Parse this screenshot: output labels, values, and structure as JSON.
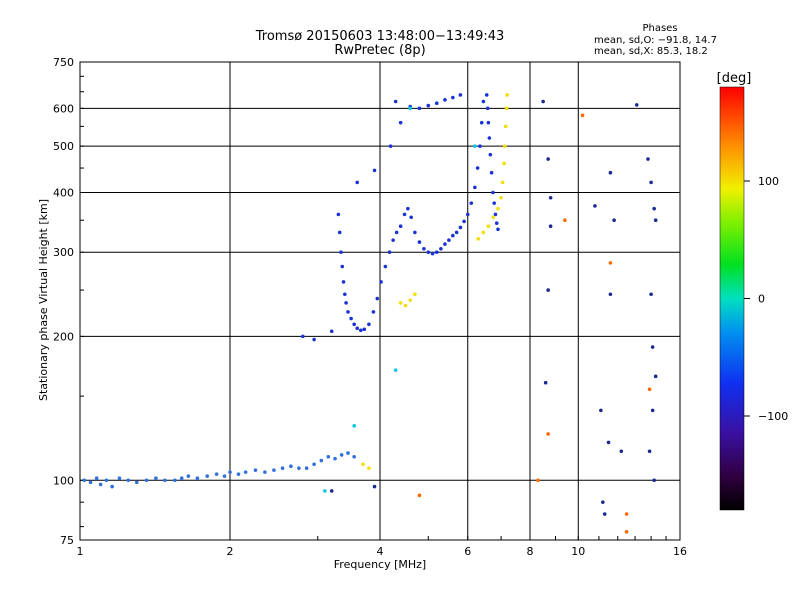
{
  "header": {
    "title": "Tromsø 20150603 13:48:00−13:49:43",
    "subtitle": "RwPretec (8p)"
  },
  "phase_box": {
    "heading": "Phases",
    "line1": "mean, sd,O: −91.8, 14.7",
    "line2": "mean, sd,X:  85.3, 18.2"
  },
  "colorbar": {
    "label": "[deg]",
    "ticks": [
      {
        "value": 100,
        "label": "100"
      },
      {
        "value": 0,
        "label": "0"
      },
      {
        "value": -100,
        "label": "−100"
      }
    ],
    "range": [
      -180,
      180
    ]
  },
  "chart_data": {
    "type": "scatter",
    "title": "Tromsø 20150603 13:48:00−13:49:43",
    "subtitle": "RwPretec (8p)",
    "xlabel": "Frequency [MHz]",
    "ylabel": "Stationary phase Virtual Height [km]",
    "x_scale": "log",
    "y_scale": "log",
    "xlim": [
      1,
      16
    ],
    "ylim": [
      75,
      750
    ],
    "x_ticks": [
      {
        "value": 1,
        "label": "1"
      },
      {
        "value": 2,
        "label": "2"
      },
      {
        "value": 4,
        "label": "4"
      },
      {
        "value": 6,
        "label": "6"
      },
      {
        "value": 8,
        "label": "8"
      },
      {
        "value": 10,
        "label": "10"
      },
      {
        "value": 16,
        "label": "16"
      }
    ],
    "y_ticks": [
      {
        "value": 75,
        "label": "75"
      },
      {
        "value": 100,
        "label": "100"
      },
      {
        "value": 200,
        "label": "200"
      },
      {
        "value": 300,
        "label": "300"
      },
      {
        "value": 400,
        "label": "400"
      },
      {
        "value": 500,
        "label": "500"
      },
      {
        "value": 600,
        "label": "600"
      },
      {
        "value": 750,
        "label": "750"
      }
    ],
    "grid": true,
    "colormap": "rainbow phase [deg]",
    "series": [
      {
        "color": "#2f6fe0",
        "points": [
          [
            1.02,
            100
          ],
          [
            1.05,
            99
          ],
          [
            1.08,
            101
          ],
          [
            1.1,
            98
          ],
          [
            1.13,
            100
          ],
          [
            1.16,
            97
          ],
          [
            1.2,
            101
          ],
          [
            1.25,
            100
          ],
          [
            1.3,
            99
          ],
          [
            1.36,
            100
          ],
          [
            1.42,
            101
          ],
          [
            1.48,
            100
          ],
          [
            1.55,
            100
          ],
          [
            1.6,
            101
          ],
          [
            1.65,
            102
          ],
          [
            1.72,
            101
          ],
          [
            1.8,
            102
          ],
          [
            1.88,
            103
          ],
          [
            1.95,
            102
          ],
          [
            2.0,
            104
          ],
          [
            2.08,
            103
          ],
          [
            2.15,
            104
          ],
          [
            2.25,
            105
          ],
          [
            2.35,
            104
          ],
          [
            2.45,
            105
          ],
          [
            2.55,
            106
          ],
          [
            2.65,
            107
          ],
          [
            2.75,
            106
          ],
          [
            2.85,
            106
          ],
          [
            2.95,
            108
          ],
          [
            3.05,
            110
          ],
          [
            3.15,
            112
          ],
          [
            3.25,
            111
          ],
          [
            3.35,
            113
          ],
          [
            3.45,
            114
          ],
          [
            3.55,
            112
          ]
        ]
      },
      {
        "color": "#1a33d6",
        "points": [
          [
            3.3,
            360
          ],
          [
            3.32,
            330
          ],
          [
            3.34,
            300
          ],
          [
            3.36,
            280
          ],
          [
            3.38,
            260
          ],
          [
            3.4,
            245
          ],
          [
            3.42,
            235
          ],
          [
            3.45,
            225
          ],
          [
            3.5,
            218
          ],
          [
            3.55,
            212
          ],
          [
            3.6,
            208
          ],
          [
            3.66,
            206
          ],
          [
            3.72,
            207
          ],
          [
            3.8,
            212
          ],
          [
            3.88,
            225
          ],
          [
            3.95,
            240
          ],
          [
            4.02,
            260
          ],
          [
            4.1,
            280
          ],
          [
            4.18,
            300
          ],
          [
            4.25,
            318
          ],
          [
            4.32,
            330
          ],
          [
            4.4,
            340
          ],
          [
            4.48,
            360
          ],
          [
            4.55,
            370
          ],
          [
            4.62,
            355
          ],
          [
            4.7,
            330
          ],
          [
            4.8,
            315
          ],
          [
            4.9,
            305
          ],
          [
            5.0,
            300
          ],
          [
            5.1,
            298
          ],
          [
            5.2,
            300
          ],
          [
            5.3,
            305
          ],
          [
            5.4,
            312
          ],
          [
            5.5,
            318
          ],
          [
            5.6,
            325
          ],
          [
            5.7,
            330
          ],
          [
            5.8,
            338
          ],
          [
            5.9,
            348
          ],
          [
            6.0,
            360
          ],
          [
            6.1,
            380
          ],
          [
            6.2,
            410
          ],
          [
            6.28,
            450
          ],
          [
            6.35,
            500
          ],
          [
            6.4,
            560
          ],
          [
            6.45,
            620
          ]
        ]
      },
      {
        "color": "#1a33d6",
        "points": [
          [
            2.8,
            200
          ],
          [
            2.95,
            197
          ],
          [
            3.2,
            205
          ],
          [
            3.6,
            420
          ],
          [
            3.9,
            445
          ],
          [
            4.3,
            620
          ],
          [
            4.6,
            605
          ],
          [
            4.8,
            600
          ],
          [
            5.0,
            608
          ],
          [
            5.2,
            615
          ],
          [
            5.4,
            625
          ],
          [
            5.6,
            632
          ],
          [
            5.8,
            640
          ],
          [
            4.4,
            560
          ],
          [
            4.2,
            500
          ]
        ]
      },
      {
        "color": "#1a33d6",
        "points": [
          [
            6.55,
            640
          ],
          [
            6.58,
            600
          ],
          [
            6.6,
            560
          ],
          [
            6.63,
            520
          ],
          [
            6.66,
            480
          ],
          [
            6.7,
            440
          ],
          [
            6.74,
            400
          ],
          [
            6.78,
            380
          ],
          [
            6.82,
            360
          ],
          [
            6.86,
            345
          ],
          [
            6.9,
            335
          ]
        ]
      },
      {
        "color": "#f0e000",
        "points": [
          [
            6.3,
            320
          ],
          [
            6.45,
            330
          ],
          [
            6.6,
            340
          ],
          [
            6.75,
            355
          ],
          [
            6.9,
            370
          ],
          [
            7.0,
            390
          ],
          [
            7.05,
            420
          ],
          [
            7.1,
            460
          ],
          [
            7.12,
            500
          ],
          [
            7.15,
            550
          ],
          [
            7.18,
            600
          ],
          [
            7.2,
            640
          ],
          [
            4.4,
            235
          ],
          [
            4.5,
            232
          ],
          [
            4.6,
            238
          ],
          [
            4.7,
            245
          ],
          [
            3.7,
            108
          ],
          [
            3.8,
            106
          ]
        ]
      },
      {
        "color": "#00c8e0",
        "points": [
          [
            4.3,
            170
          ],
          [
            3.55,
            130
          ],
          [
            6.2,
            500
          ],
          [
            4.6,
            600
          ],
          [
            3.1,
            95
          ]
        ]
      },
      {
        "color": "#ff6a00",
        "points": [
          [
            8.3,
            100
          ],
          [
            8.7,
            125
          ],
          [
            9.4,
            350
          ],
          [
            10.2,
            580
          ],
          [
            11.6,
            285
          ],
          [
            12.5,
            85
          ],
          [
            12.5,
            78
          ],
          [
            13.9,
            155
          ],
          [
            4.8,
            93
          ]
        ]
      },
      {
        "color": "#1a2a90",
        "points": [
          [
            8.6,
            160
          ],
          [
            8.7,
            250
          ],
          [
            8.8,
            340
          ],
          [
            8.8,
            390
          ],
          [
            8.7,
            470
          ],
          [
            8.5,
            620
          ],
          [
            10.8,
            375
          ],
          [
            11.6,
            440
          ],
          [
            11.8,
            350
          ],
          [
            11.6,
            245
          ],
          [
            11.1,
            140
          ],
          [
            11.5,
            120
          ],
          [
            12.2,
            115
          ],
          [
            13.1,
            610
          ],
          [
            13.8,
            470
          ],
          [
            14.0,
            420
          ],
          [
            14.2,
            370
          ],
          [
            14.3,
            350
          ],
          [
            14.0,
            245
          ],
          [
            14.1,
            190
          ],
          [
            14.3,
            165
          ],
          [
            14.1,
            140
          ],
          [
            13.9,
            115
          ],
          [
            14.2,
            100
          ],
          [
            11.2,
            90
          ],
          [
            11.3,
            85
          ],
          [
            3.9,
            97
          ],
          [
            3.2,
            95
          ]
        ]
      }
    ]
  }
}
